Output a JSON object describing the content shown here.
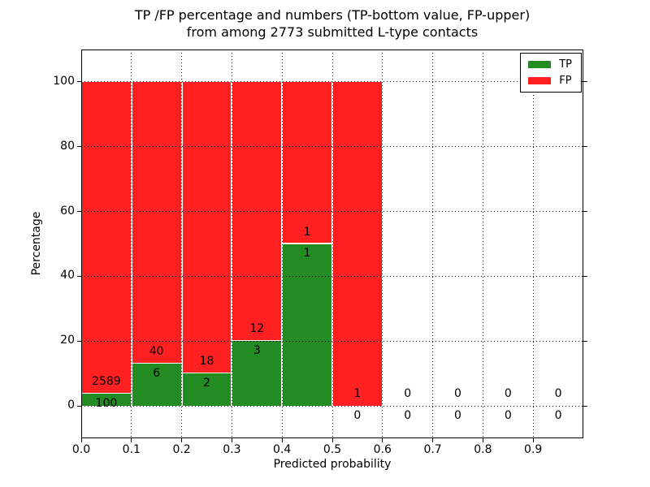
{
  "title": {
    "line1": "TP /FP percentage and numbers (TP-bottom value, FP-upper)",
    "line2": "from among 2773 submitted L-type contacts"
  },
  "axes": {
    "xlabel": "Predicted probability",
    "ylabel": "Percentage",
    "x_ticks": [
      "0.0",
      "0.1",
      "0.2",
      "0.3",
      "0.4",
      "0.5",
      "0.6",
      "0.7",
      "0.8",
      "0.9"
    ],
    "y_ticks": [
      "0",
      "20",
      "40",
      "60",
      "80",
      "100"
    ],
    "xlim": [
      0.0,
      1.0
    ],
    "ylim": [
      -10,
      110
    ],
    "grid_style": "dotted",
    "grid_color": "#000000"
  },
  "legend": {
    "position": "upper-right",
    "items": [
      {
        "label": "TP",
        "color": "#228B22"
      },
      {
        "label": "FP",
        "color": "#FF2121"
      }
    ]
  },
  "chart_data": {
    "type": "bar",
    "stacked": true,
    "title": "TP /FP percentage and numbers (TP-bottom value, FP-upper) from among 2773 submitted L-type contacts",
    "xlabel": "Predicted probability",
    "ylabel": "Percentage",
    "xlim": [
      0.0,
      1.0
    ],
    "ylim": [
      -10,
      110
    ],
    "total_contacts": 2773,
    "bin_width": 0.1,
    "colors": {
      "tp": "#228B22",
      "fp": "#FF2121"
    },
    "bins": [
      {
        "x0": 0.0,
        "x1": 0.1,
        "tp": 100,
        "fp": 2589,
        "tp_pct": 3.72,
        "fp_pct": 96.28
      },
      {
        "x0": 0.1,
        "x1": 0.2,
        "tp": 6,
        "fp": 40,
        "tp_pct": 13.04,
        "fp_pct": 86.96
      },
      {
        "x0": 0.2,
        "x1": 0.3,
        "tp": 2,
        "fp": 18,
        "tp_pct": 10.0,
        "fp_pct": 90.0
      },
      {
        "x0": 0.3,
        "x1": 0.4,
        "tp": 3,
        "fp": 12,
        "tp_pct": 20.0,
        "fp_pct": 80.0
      },
      {
        "x0": 0.4,
        "x1": 0.5,
        "tp": 1,
        "fp": 1,
        "tp_pct": 50.0,
        "fp_pct": 50.0
      },
      {
        "x0": 0.5,
        "x1": 0.6,
        "tp": 0,
        "fp": 1,
        "tp_pct": 0.0,
        "fp_pct": 100.0
      },
      {
        "x0": 0.6,
        "x1": 0.7,
        "tp": 0,
        "fp": 0,
        "tp_pct": 0.0,
        "fp_pct": 0.0
      },
      {
        "x0": 0.7,
        "x1": 0.8,
        "tp": 0,
        "fp": 0,
        "tp_pct": 0.0,
        "fp_pct": 0.0
      },
      {
        "x0": 0.8,
        "x1": 0.9,
        "tp": 0,
        "fp": 0,
        "tp_pct": 0.0,
        "fp_pct": 0.0
      },
      {
        "x0": 0.9,
        "x1": 1.0,
        "tp": 0,
        "fp": 0,
        "tp_pct": 0.0,
        "fp_pct": 0.0
      }
    ]
  }
}
